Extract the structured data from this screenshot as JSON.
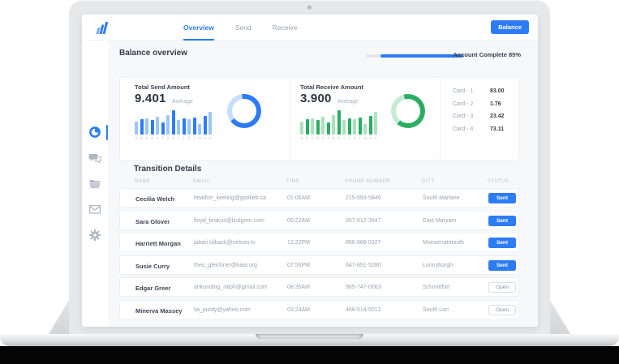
{
  "nav": {
    "logo_icon": "bar-chart-logo-icon",
    "tabs": [
      {
        "label": "Overview",
        "active": true
      },
      {
        "label": "Send",
        "active": false
      },
      {
        "label": "Receive",
        "active": false
      }
    ],
    "balance_button": "Balance"
  },
  "sidebar": {
    "items": [
      {
        "icon": "pie-chart-icon",
        "label": "dashboard",
        "active": true
      },
      {
        "icon": "chat-icon",
        "label": "messages",
        "active": false
      },
      {
        "icon": "folder-icon",
        "label": "files",
        "active": false
      },
      {
        "icon": "mail-icon",
        "label": "mail",
        "active": false
      },
      {
        "icon": "gear-icon",
        "label": "settings",
        "active": false
      }
    ]
  },
  "overview_header": {
    "title": "Balance overview",
    "account_complete_label": "Account Complete 85%",
    "progress_percent": 85
  },
  "chart_data": [
    {
      "type": "bar",
      "title": "Total Send Amount",
      "average_value": "9.401",
      "average_label": "Average",
      "categories": [
        "a",
        "b",
        "c",
        "d",
        "e",
        "f",
        "g",
        "h",
        "i",
        "j",
        "k",
        "l",
        "m",
        "n",
        "o"
      ],
      "values": [
        55,
        62,
        68,
        60,
        75,
        50,
        80,
        100,
        60,
        68,
        64,
        70,
        45,
        78,
        95
      ],
      "ylim": [
        0,
        100
      ],
      "grid": false,
      "colors": {
        "bar_light": "#9cc5fa",
        "bar_dark": "#2d7cf6"
      },
      "donut": {
        "dark_fraction": 0.67,
        "start_deg": -8,
        "dark_sweep_deg": 241,
        "color_dark": "#2d7cf6",
        "color_light": "#c7ddfc"
      }
    },
    {
      "type": "bar",
      "title": "Total Receive Amount",
      "average_value": "3.900",
      "average_label": "Average",
      "categories": [
        "a",
        "b",
        "c",
        "d",
        "e",
        "f",
        "g",
        "h",
        "i",
        "j",
        "k",
        "l",
        "m",
        "n",
        "o"
      ],
      "values": [
        55,
        62,
        68,
        60,
        75,
        50,
        80,
        100,
        60,
        68,
        64,
        70,
        45,
        78,
        95
      ],
      "ylim": [
        0,
        100
      ],
      "grid": false,
      "colors": {
        "bar_light": "#a9e2bd",
        "bar_dark": "#2bad62"
      },
      "donut": {
        "dark_fraction": 0.65,
        "start_deg": -15,
        "dark_sweep_deg": 235,
        "color_dark": "#2bad62",
        "color_light": "#c3ecd2"
      }
    }
  ],
  "cards_panel": {
    "items": [
      {
        "label": "Card - 1",
        "value": "83.00"
      },
      {
        "label": "Card - 2",
        "value": "1.76"
      },
      {
        "label": "Card - 3",
        "value": "23.42"
      },
      {
        "label": "Card - 4",
        "value": "73.11"
      }
    ]
  },
  "table": {
    "title": "Transition Details",
    "columns": [
      "NAME",
      "EMAIL",
      "TIME",
      "PHONE NUMBER",
      "CITY",
      "STATUS"
    ],
    "rows": [
      {
        "name": "Cecilia Welch",
        "email": "heather_keeling@gottlieb.ca",
        "time": "01:06AM",
        "phone": "215-593-5846",
        "city": "South Marlane",
        "status": "Sent",
        "status_variant": "primary"
      },
      {
        "name": "Sara Glover",
        "email": "floyd_brakus@lindgren.com",
        "time": "00:22AM",
        "phone": "057-812-3947",
        "city": "East Maryam",
        "status": "Sent",
        "status_variant": "primary"
      },
      {
        "name": "Harriett Morgan",
        "email": "jabari.kilback@nelson.tv",
        "time": "12:22PM",
        "phone": "866-668-0327",
        "city": "Monserratmouth",
        "status": "Sent",
        "status_variant": "primary"
      },
      {
        "name": "Susie Curry",
        "email": "theo_gleichner@kaia.org",
        "time": "07:56PM",
        "phone": "647-851-5280",
        "city": "Lonnyburgh",
        "status": "Sent",
        "status_variant": "primary"
      },
      {
        "name": "Edgar Greer",
        "email": "ankunding_ralph@gmail.com",
        "time": "08:35AM",
        "phone": "985-747-0063",
        "city": "Schmittfurt",
        "status": "Open",
        "status_variant": "outline"
      },
      {
        "name": "Minerva Massey",
        "email": "lia_purdy@yahoo.com",
        "time": "03:24AM",
        "phone": "488-514-5012",
        "city": "South Lori",
        "status": "Open",
        "status_variant": "outline"
      }
    ]
  },
  "colors": {
    "accent_blue": "#2d7cf6",
    "accent_green": "#2bad62",
    "page_bg": "#f7f8fa",
    "muted_text": "#9aa3b0",
    "dark_text": "#333c49"
  }
}
